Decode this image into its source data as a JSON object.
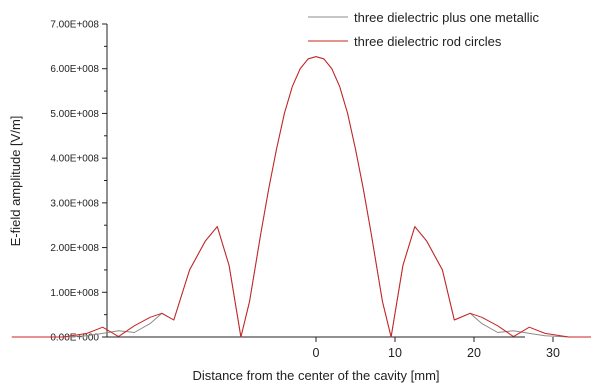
{
  "chart_data": {
    "type": "line",
    "title": "",
    "xlabel": "Distance from the center of the cavity [mm]",
    "ylabel": "E-field amplitude [V/m]",
    "xlim": [
      -40,
      40
    ],
    "ylim": [
      0,
      700000000
    ],
    "x_ticks": [
      0,
      10,
      20,
      30
    ],
    "x_tick_labels": [
      "0",
      "10",
      "20",
      "30"
    ],
    "y_ticks": [
      0,
      100000000,
      200000000,
      300000000,
      400000000,
      500000000,
      600000000,
      700000000
    ],
    "y_tick_labels": [
      "0.00E+000",
      "1.00E+008",
      "2.00E+008",
      "3.00E+008",
      "4.00E+008",
      "5.00E+008",
      "6.00E+008",
      "7.00E+008"
    ],
    "grid": false,
    "legend_position": "top-right",
    "series": [
      {
        "name": "three dielectric plus one metallic",
        "color": "#8c8c8c",
        "x": [
          -38.5,
          -32,
          -29,
          -27,
          -25,
          -23,
          -21,
          -19.5,
          -18,
          -16,
          -14,
          -12.5,
          -11,
          -9.5,
          -8.4,
          -7,
          -6,
          -5,
          -4,
          -3,
          -2,
          -1,
          0,
          1,
          2,
          3,
          4,
          5,
          6,
          7,
          8.4,
          9.5,
          11,
          12.5,
          14,
          16,
          17.5,
          19.5,
          21,
          23,
          25,
          27,
          29,
          32,
          38.5
        ],
        "y": [
          0,
          0,
          3000000,
          8000000,
          14000000,
          10000000,
          30000000,
          53000000,
          38000000,
          150000000,
          215000000,
          247000000,
          160000000,
          0,
          80000000,
          230000000,
          330000000,
          420000000,
          500000000,
          560000000,
          600000000,
          622000000,
          627000000,
          622000000,
          600000000,
          560000000,
          500000000,
          420000000,
          330000000,
          230000000,
          80000000,
          0,
          160000000,
          247000000,
          215000000,
          150000000,
          38000000,
          53000000,
          30000000,
          10000000,
          14000000,
          8000000,
          3000000,
          0,
          0
        ]
      },
      {
        "name": "three dielectric rod circles",
        "color": "#cc2222",
        "x": [
          -38.5,
          -32,
          -29,
          -27,
          -25,
          -23,
          -21,
          -19.5,
          -18,
          -16,
          -14,
          -12.5,
          -11,
          -9.5,
          -8.4,
          -7,
          -6,
          -5,
          -4,
          -3,
          -2,
          -1,
          0,
          1,
          2,
          3,
          4,
          5,
          6,
          7,
          8.4,
          9.5,
          11,
          12.5,
          14,
          16,
          17.5,
          19.5,
          21,
          23,
          25,
          27,
          29,
          32,
          38.5
        ],
        "y": [
          0,
          0,
          8000000,
          22000000,
          1000000,
          25000000,
          44000000,
          53000000,
          38000000,
          150000000,
          215000000,
          247000000,
          160000000,
          0,
          80000000,
          230000000,
          330000000,
          420000000,
          500000000,
          560000000,
          600000000,
          622000000,
          627000000,
          622000000,
          600000000,
          560000000,
          500000000,
          420000000,
          330000000,
          230000000,
          80000000,
          0,
          160000000,
          247000000,
          215000000,
          150000000,
          38000000,
          53000000,
          44000000,
          25000000,
          1000000,
          22000000,
          8000000,
          0,
          0
        ]
      }
    ]
  }
}
